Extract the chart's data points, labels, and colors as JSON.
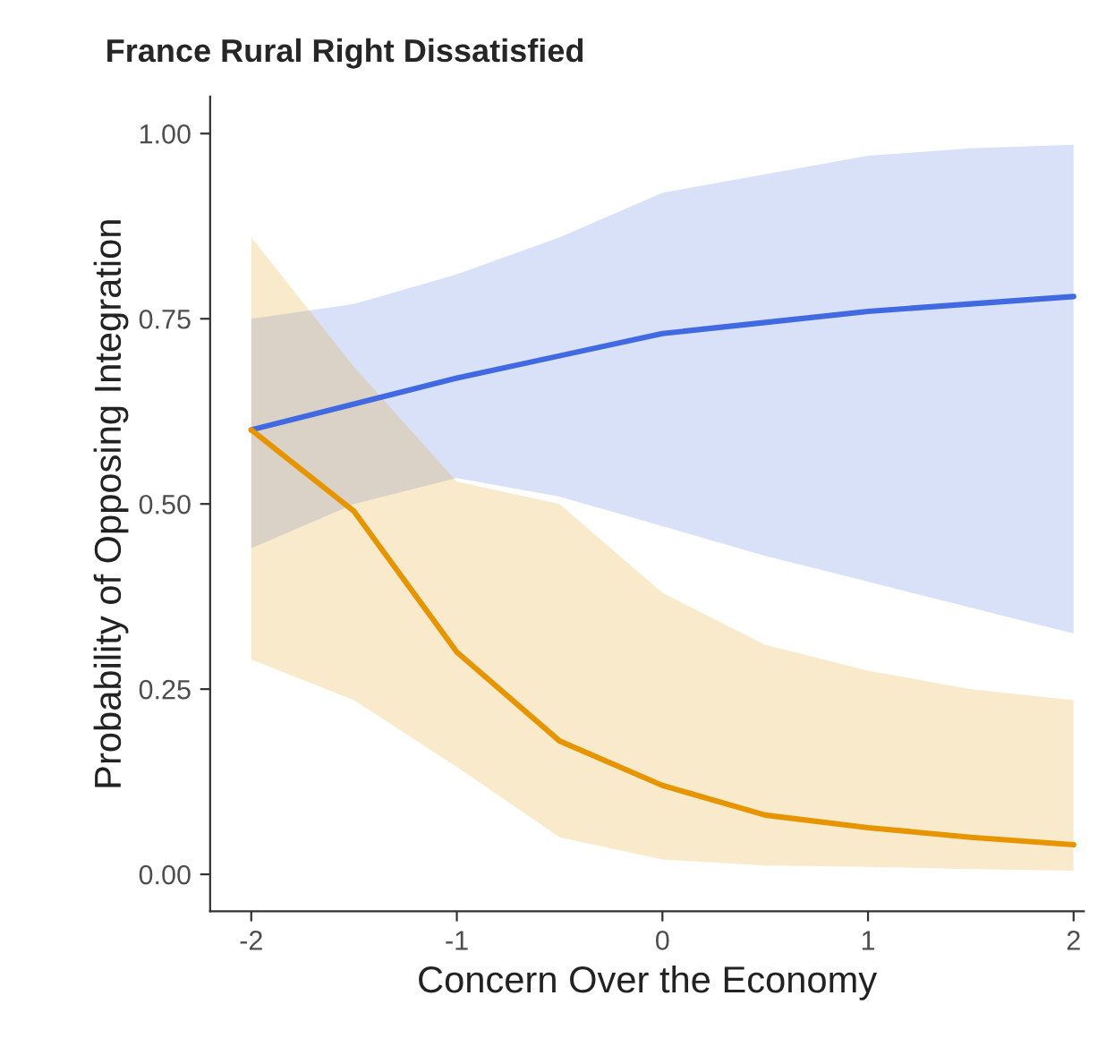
{
  "chart_data": {
    "type": "line",
    "title": "France Rural Right Dissatisfied",
    "xlabel": "Concern Over the Economy",
    "ylabel": "Probability of Opposing Integration",
    "x": [
      -2,
      -1.5,
      -1,
      -0.5,
      0,
      0.5,
      1,
      1.5,
      2
    ],
    "series": [
      {
        "color": "#4169e1",
        "values": [
          0.6,
          0.635,
          0.67,
          0.7,
          0.73,
          0.745,
          0.76,
          0.77,
          0.78
        ],
        "lower": [
          0.44,
          0.5,
          0.535,
          0.51,
          0.47,
          0.43,
          0.395,
          0.36,
          0.325
        ],
        "upper": [
          0.75,
          0.77,
          0.81,
          0.86,
          0.92,
          0.945,
          0.97,
          0.98,
          0.985
        ]
      },
      {
        "color": "#e69500",
        "values": [
          0.6,
          0.49,
          0.3,
          0.18,
          0.12,
          0.08,
          0.063,
          0.05,
          0.04
        ],
        "lower": [
          0.29,
          0.235,
          0.145,
          0.05,
          0.02,
          0.012,
          0.01,
          0.007,
          0.005
        ],
        "upper": [
          0.86,
          0.685,
          0.53,
          0.5,
          0.38,
          0.31,
          0.275,
          0.25,
          0.235
        ]
      }
    ],
    "xlim": [
      -2.2,
      2.05
    ],
    "ylim": [
      -0.05,
      1.05
    ],
    "xticks": [
      -2,
      -1,
      0,
      1,
      2
    ],
    "yticks": [
      {
        "value": 0,
        "label": "0.00"
      },
      {
        "value": 0.25,
        "label": "0.25"
      },
      {
        "value": 0.5,
        "label": "0.50"
      },
      {
        "value": 0.75,
        "label": "0.75"
      },
      {
        "value": 1,
        "label": "1.00"
      }
    ],
    "grid": false,
    "marker": "none",
    "line_style": "solid"
  }
}
